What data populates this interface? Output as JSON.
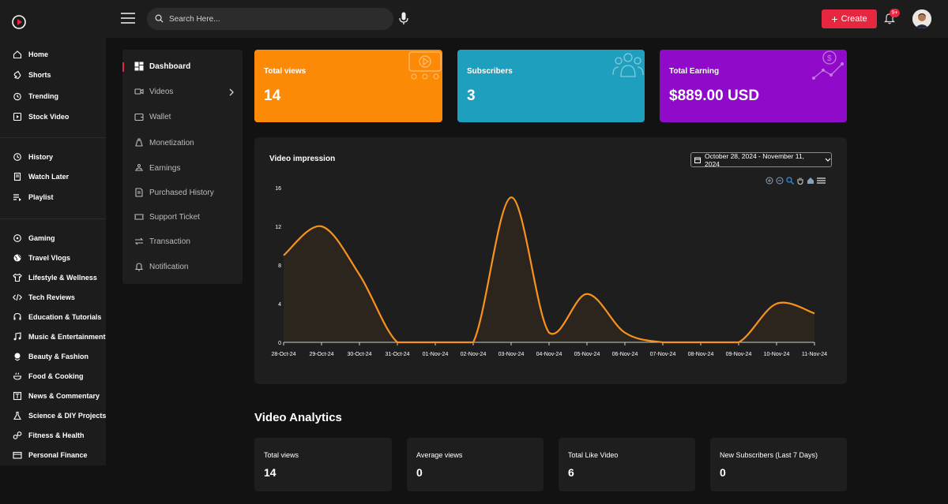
{
  "header": {
    "search_placeholder": "Search Here...",
    "create_label": "Create",
    "notification_count": "9+"
  },
  "sidebar": {
    "groups": [
      [
        {
          "label": "Home",
          "icon": "home-icon"
        },
        {
          "label": "Shorts",
          "icon": "shorts-icon"
        },
        {
          "label": "Trending",
          "icon": "trending-icon"
        },
        {
          "label": "Stock Video",
          "icon": "stock-video-icon"
        }
      ],
      [
        {
          "label": "History",
          "icon": "history-icon"
        },
        {
          "label": "Watch Later",
          "icon": "watch-later-icon"
        },
        {
          "label": "Playlist",
          "icon": "playlist-icon"
        }
      ],
      [
        {
          "label": "Gaming",
          "icon": "gaming-icon"
        },
        {
          "label": "Travel Vlogs",
          "icon": "globe-icon"
        },
        {
          "label": "Lifestyle & Wellness",
          "icon": "shirt-icon"
        },
        {
          "label": "Tech Reviews",
          "icon": "code-icon"
        },
        {
          "label": "Education & Tutorials",
          "icon": "headset-icon"
        },
        {
          "label": "Music & Entertainment",
          "icon": "music-icon"
        },
        {
          "label": "Beauty & Fashion",
          "icon": "beauty-icon"
        },
        {
          "label": "Food & Cooking",
          "icon": "food-icon"
        },
        {
          "label": "News & Commentary",
          "icon": "news-icon"
        },
        {
          "label": "Science & DIY Projects",
          "icon": "flask-icon"
        },
        {
          "label": "Fitness & Health",
          "icon": "fitness-icon"
        },
        {
          "label": "Personal Finance",
          "icon": "finance-icon"
        }
      ]
    ]
  },
  "subnav": {
    "items": [
      {
        "label": "Dashboard",
        "icon": "dashboard-icon",
        "active": true
      },
      {
        "label": "Videos",
        "icon": "video-icon",
        "has_children": true
      },
      {
        "label": "Wallet",
        "icon": "wallet-icon"
      },
      {
        "label": "Monetization",
        "icon": "monetization-icon"
      },
      {
        "label": "Earnings",
        "icon": "earnings-icon"
      },
      {
        "label": "Purchased History",
        "icon": "receipt-icon"
      },
      {
        "label": "Support Ticket",
        "icon": "ticket-icon"
      },
      {
        "label": "Transaction",
        "icon": "transfer-icon"
      },
      {
        "label": "Notification",
        "icon": "bell-icon"
      }
    ]
  },
  "cards": [
    {
      "label": "Total views",
      "value": "14",
      "color": "#fd8a07"
    },
    {
      "label": "Subscribers",
      "value": "3",
      "color": "#1f9fbe"
    },
    {
      "label": "Total Earning",
      "value": "$889.00 USD",
      "color": "#8f0ac9"
    }
  ],
  "impression": {
    "title": "Video impression",
    "date_range": "October 28, 2024 - November 11, 2024"
  },
  "chart_data": {
    "type": "area",
    "categories": [
      "28-Oct-24",
      "29-Oct-24",
      "30-Oct-24",
      "31-Oct-24",
      "01-Nov-24",
      "02-Nov-24",
      "03-Nov-24",
      "04-Nov-24",
      "05-Nov-24",
      "06-Nov-24",
      "07-Nov-24",
      "08-Nov-24",
      "09-Nov-24",
      "10-Nov-24",
      "11-Nov-24"
    ],
    "values": [
      9,
      12,
      7,
      0,
      0,
      0,
      15,
      1,
      5,
      1,
      0,
      0,
      0,
      4,
      3
    ],
    "yticks": [
      0,
      4,
      8,
      12,
      16
    ],
    "ylim": [
      0,
      16
    ],
    "line_color": "#f7921e",
    "grid": false
  },
  "analytics": {
    "title": "Video Analytics",
    "stats": [
      {
        "label": "Total views",
        "value": "14"
      },
      {
        "label": "Average views",
        "value": "0"
      },
      {
        "label": "Total Like Video",
        "value": "6"
      },
      {
        "label": "New Subscribers (Last 7 Days)",
        "value": "0"
      }
    ]
  }
}
